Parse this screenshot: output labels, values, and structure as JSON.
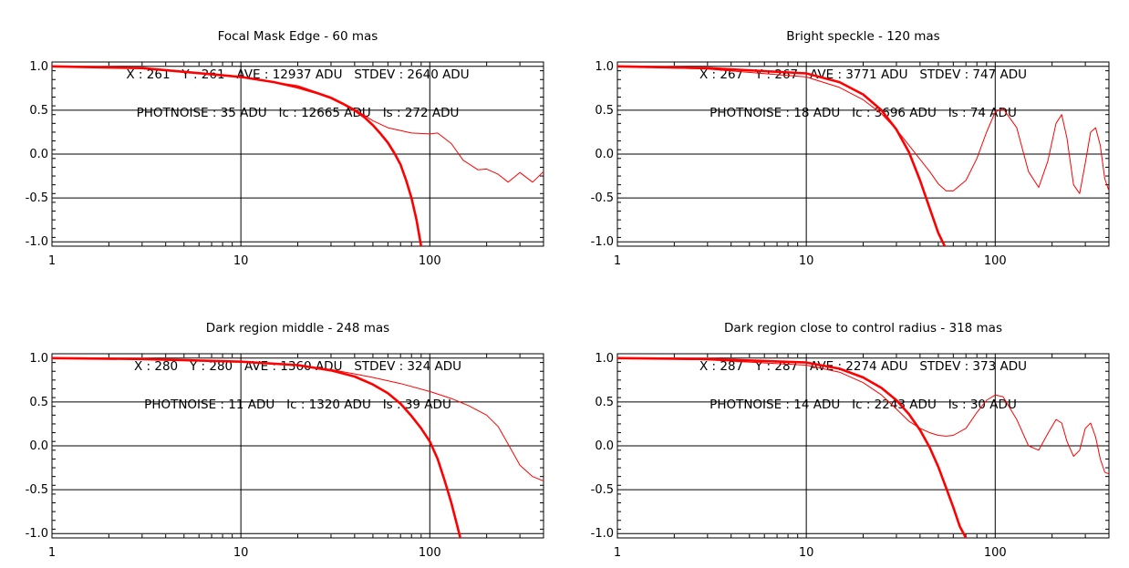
{
  "chart_data": [
    {
      "type": "line",
      "title_lines": [
        "Focal Mask Edge - 60 mas",
        "X : 261   Y : 261   AVE : 12937 ADU   STDEV : 2640 ADU",
        "PHOTNOISE : 35 ADU   Ic : 12665 ADU   Is : 272 ADU"
      ],
      "x_scale": "log",
      "xlim": [
        1,
        400
      ],
      "ylim": [
        -1.05,
        1.05
      ],
      "x_ticks": [
        1,
        10,
        100
      ],
      "x_tick_labels": [
        "1",
        "10",
        "100"
      ],
      "y_ticks": [
        1.0,
        0.5,
        0.0,
        -0.5,
        -1.0
      ],
      "y_tick_labels": [
        "1.0",
        "0.5",
        "0.0",
        "-0.5",
        "-1.0"
      ],
      "grid": true,
      "color": "#ff0000",
      "series": [
        {
          "style": "thick",
          "x": [
            1,
            3,
            10,
            15,
            20,
            25,
            30,
            35,
            40,
            45,
            50,
            55,
            60,
            65,
            70,
            75,
            80,
            85,
            90
          ],
          "y": [
            1.0,
            0.98,
            0.88,
            0.82,
            0.76,
            0.7,
            0.64,
            0.57,
            0.5,
            0.42,
            0.33,
            0.23,
            0.13,
            0.01,
            -0.12,
            -0.3,
            -0.5,
            -0.75,
            -1.05
          ]
        },
        {
          "style": "thin",
          "x": [
            1,
            3,
            10,
            20,
            30,
            40,
            50,
            60,
            80,
            100,
            110,
            130,
            150,
            180,
            200,
            230,
            260,
            300,
            350,
            400
          ],
          "y": [
            1.0,
            0.98,
            0.88,
            0.78,
            0.65,
            0.51,
            0.38,
            0.3,
            0.24,
            0.23,
            0.24,
            0.12,
            -0.07,
            -0.18,
            -0.17,
            -0.23,
            -0.32,
            -0.21,
            -0.32,
            -0.2
          ]
        }
      ]
    },
    {
      "type": "line",
      "title_lines": [
        "Bright speckle - 120 mas",
        "X : 267   Y : 267   AVE : 3771 ADU   STDEV : 747 ADU",
        "PHOTNOISE : 18 ADU   Ic : 3696 ADU   Is : 74 ADU"
      ],
      "x_scale": "log",
      "xlim": [
        1,
        400
      ],
      "ylim": [
        -1.05,
        1.05
      ],
      "x_ticks": [
        1,
        10,
        100
      ],
      "x_tick_labels": [
        "1",
        "10",
        "100"
      ],
      "y_ticks": [
        1.0,
        0.5,
        0.0,
        -0.5,
        -1.0
      ],
      "y_tick_labels": [
        "1.0",
        "0.5",
        "0.0",
        "-0.5",
        "-1.0"
      ],
      "grid": true,
      "color": "#ff0000",
      "series": [
        {
          "style": "thick",
          "x": [
            1,
            3,
            10,
            15,
            20,
            25,
            30,
            35,
            40,
            45,
            50,
            54
          ],
          "y": [
            1.0,
            0.98,
            0.92,
            0.82,
            0.68,
            0.5,
            0.28,
            0.02,
            -0.3,
            -0.62,
            -0.9,
            -1.05
          ]
        },
        {
          "style": "thin",
          "x": [
            1,
            3,
            10,
            15,
            20,
            25,
            30,
            35,
            40,
            45,
            50,
            55,
            60,
            70,
            80,
            90,
            100,
            110,
            130,
            150,
            170,
            190,
            210,
            225,
            240,
            260,
            280,
            300,
            320,
            340,
            360,
            380,
            400
          ],
          "y": [
            1.0,
            0.97,
            0.88,
            0.76,
            0.62,
            0.46,
            0.28,
            0.1,
            -0.06,
            -0.2,
            -0.34,
            -0.42,
            -0.42,
            -0.3,
            -0.05,
            0.25,
            0.48,
            0.52,
            0.3,
            -0.2,
            -0.38,
            -0.08,
            0.35,
            0.45,
            0.18,
            -0.35,
            -0.45,
            -0.1,
            0.25,
            0.3,
            0.1,
            -0.28,
            -0.42
          ]
        }
      ]
    },
    {
      "type": "line",
      "title_lines": [
        "Dark region middle - 248 mas",
        "X : 280   Y : 280   AVE : 1360 ADU   STDEV : 324 ADU",
        "PHOTNOISE : 11 ADU   Ic : 1320 ADU   Is : 39 ADU"
      ],
      "x_scale": "log",
      "xlim": [
        1,
        400
      ],
      "ylim": [
        -1.05,
        1.05
      ],
      "x_ticks": [
        1,
        10,
        100
      ],
      "x_tick_labels": [
        "1",
        "10",
        "100"
      ],
      "y_ticks": [
        1.0,
        0.5,
        0.0,
        -0.5,
        -1.0
      ],
      "y_tick_labels": [
        "1.0",
        "0.5",
        "0.0",
        "-0.5",
        "-1.0"
      ],
      "grid": true,
      "color": "#ff0000",
      "series": [
        {
          "style": "thick",
          "x": [
            1,
            3,
            10,
            20,
            30,
            40,
            50,
            60,
            70,
            80,
            90,
            100,
            110,
            120,
            130,
            140,
            145
          ],
          "y": [
            1.0,
            0.99,
            0.96,
            0.92,
            0.86,
            0.79,
            0.7,
            0.6,
            0.48,
            0.34,
            0.2,
            0.05,
            -0.15,
            -0.4,
            -0.65,
            -0.92,
            -1.05
          ]
        },
        {
          "style": "thin",
          "x": [
            1,
            3,
            10,
            20,
            30,
            40,
            50,
            70,
            100,
            130,
            160,
            200,
            230,
            260,
            300,
            350,
            400
          ],
          "y": [
            1.0,
            0.99,
            0.96,
            0.92,
            0.87,
            0.82,
            0.78,
            0.71,
            0.62,
            0.54,
            0.46,
            0.35,
            0.22,
            0.02,
            -0.22,
            -0.35,
            -0.4
          ]
        }
      ]
    },
    {
      "type": "line",
      "title_lines": [
        "Dark region close to control radius - 318 mas",
        "X : 287   Y : 287   AVE : 2274 ADU   STDEV : 373 ADU",
        "PHOTNOISE : 14 ADU   Ic : 2243 ADU   Is : 30 ADU"
      ],
      "x_scale": "log",
      "xlim": [
        1,
        400
      ],
      "ylim": [
        -1.05,
        1.05
      ],
      "x_ticks": [
        1,
        10,
        100
      ],
      "x_tick_labels": [
        "1",
        "10",
        "100"
      ],
      "y_ticks": [
        1.0,
        0.5,
        0.0,
        -0.5,
        -1.0
      ],
      "y_tick_labels": [
        "1.0",
        "0.5",
        "0.0",
        "-0.5",
        "-1.0"
      ],
      "grid": true,
      "color": "#ff0000",
      "series": [
        {
          "style": "thick",
          "x": [
            1,
            3,
            10,
            15,
            20,
            25,
            30,
            35,
            40,
            45,
            50,
            55,
            60,
            65,
            70
          ],
          "y": [
            1.0,
            0.99,
            0.95,
            0.88,
            0.78,
            0.66,
            0.52,
            0.36,
            0.18,
            -0.02,
            -0.24,
            -0.48,
            -0.7,
            -0.92,
            -1.05
          ]
        },
        {
          "style": "thin",
          "x": [
            1,
            3,
            10,
            15,
            20,
            25,
            30,
            35,
            40,
            45,
            50,
            55,
            60,
            70,
            80,
            90,
            100,
            110,
            130,
            150,
            170,
            190,
            210,
            225,
            240,
            260,
            280,
            300,
            320,
            340,
            360,
            380,
            400
          ],
          "y": [
            1.0,
            0.98,
            0.92,
            0.84,
            0.72,
            0.58,
            0.42,
            0.28,
            0.2,
            0.15,
            0.12,
            0.11,
            0.12,
            0.2,
            0.38,
            0.52,
            0.58,
            0.56,
            0.3,
            0.0,
            -0.05,
            0.14,
            0.3,
            0.26,
            0.05,
            -0.12,
            -0.05,
            0.2,
            0.26,
            0.1,
            -0.15,
            -0.3,
            -0.32
          ]
        }
      ]
    }
  ]
}
